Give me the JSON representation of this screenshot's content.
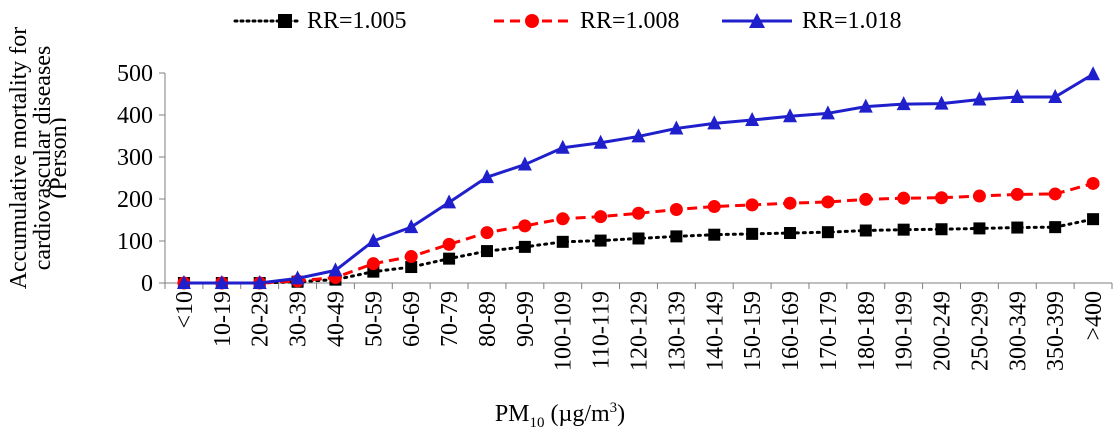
{
  "chart_data": {
    "type": "line",
    "categories": [
      "<10",
      "10-19",
      "20-29",
      "30-39",
      "40-49",
      "50-59",
      "60-69",
      "70-79",
      "80-89",
      "90-99",
      "100-109",
      "110-119",
      "120-129",
      "130-139",
      "140-149",
      "150-159",
      "160-169",
      "170-179",
      "180-189",
      "190-199",
      "200-249",
      "250-299",
      "300-349",
      "350-399",
      ">400"
    ],
    "series": [
      {
        "name": "RR=1.005",
        "color": "#000000",
        "dash": "dotted",
        "marker": "square",
        "values": [
          0,
          0,
          0,
          3,
          8,
          27,
          38,
          58,
          76,
          86,
          98,
          101,
          106,
          111,
          115,
          117,
          119,
          121,
          125,
          127,
          128,
          130,
          132,
          133,
          152
        ]
      },
      {
        "name": "RR=1.008",
        "color": "#ff0000",
        "dash": "dashed",
        "marker": "circle",
        "values": [
          0,
          0,
          0,
          5,
          13,
          46,
          63,
          92,
          120,
          136,
          153,
          158,
          166,
          175,
          182,
          186,
          190,
          193,
          199,
          202,
          203,
          207,
          211,
          212,
          237
        ]
      },
      {
        "name": "RR=1.018",
        "color": "#1f1fcc",
        "dash": "solid",
        "marker": "triangle",
        "values": [
          0,
          0,
          0,
          11,
          30,
          100,
          133,
          192,
          252,
          282,
          322,
          334,
          349,
          368,
          380,
          388,
          397,
          404,
          420,
          426,
          427,
          437,
          443,
          443,
          497
        ]
      }
    ],
    "ylim": [
      0,
      500
    ],
    "yticks": [
      0,
      100,
      200,
      300,
      400,
      500
    ],
    "ylabel_line1": "Accumulative mortality for",
    "ylabel_line2": "cardiovascular diseases",
    "ylabel_line3": "(Person)",
    "xlabel_main": "PM",
    "xlabel_sub": "10",
    "xlabel_unit": " (µg/m",
    "xlabel_sup": "3",
    "xlabel_close": ")",
    "grid": false,
    "legend_position": "top"
  }
}
